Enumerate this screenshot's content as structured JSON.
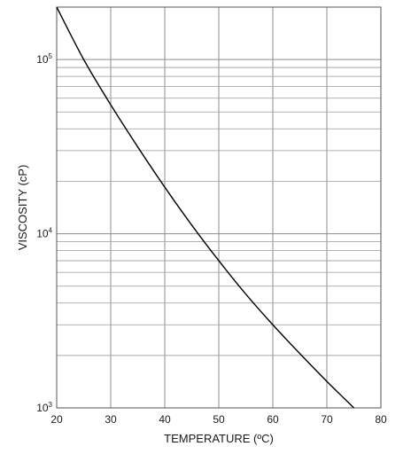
{
  "chart_data": {
    "type": "line",
    "title": "",
    "xlabel": "TEMPERATURE (ºC)",
    "ylabel": "VISCOSITY (cP)",
    "xlim": [
      20,
      80
    ],
    "ylim": [
      1000,
      200000
    ],
    "yscale": "log",
    "grid": true,
    "legend": "none",
    "x_ticks": [
      "20",
      "30",
      "40",
      "50",
      "60",
      "70",
      "80"
    ],
    "y_ticks": [
      {
        "value": 1000,
        "base": "10",
        "exp": "3"
      },
      {
        "value": 10000,
        "base": "10",
        "exp": "4"
      },
      {
        "value": 100000,
        "base": "10",
        "exp": "5"
      }
    ],
    "series": [
      {
        "color": "#000000",
        "points": [
          {
            "x": 20,
            "y": 200000
          },
          {
            "x": 25,
            "y": 100000
          },
          {
            "x": 30,
            "y": 55000
          },
          {
            "x": 35,
            "y": 31500
          },
          {
            "x": 40,
            "y": 18500
          },
          {
            "x": 45,
            "y": 11200
          },
          {
            "x": 50,
            "y": 7000
          },
          {
            "x": 55,
            "y": 4500
          },
          {
            "x": 60,
            "y": 3000
          },
          {
            "x": 65,
            "y": 2050
          },
          {
            "x": 70,
            "y": 1420
          },
          {
            "x": 75,
            "y": 1000
          }
        ]
      }
    ]
  }
}
